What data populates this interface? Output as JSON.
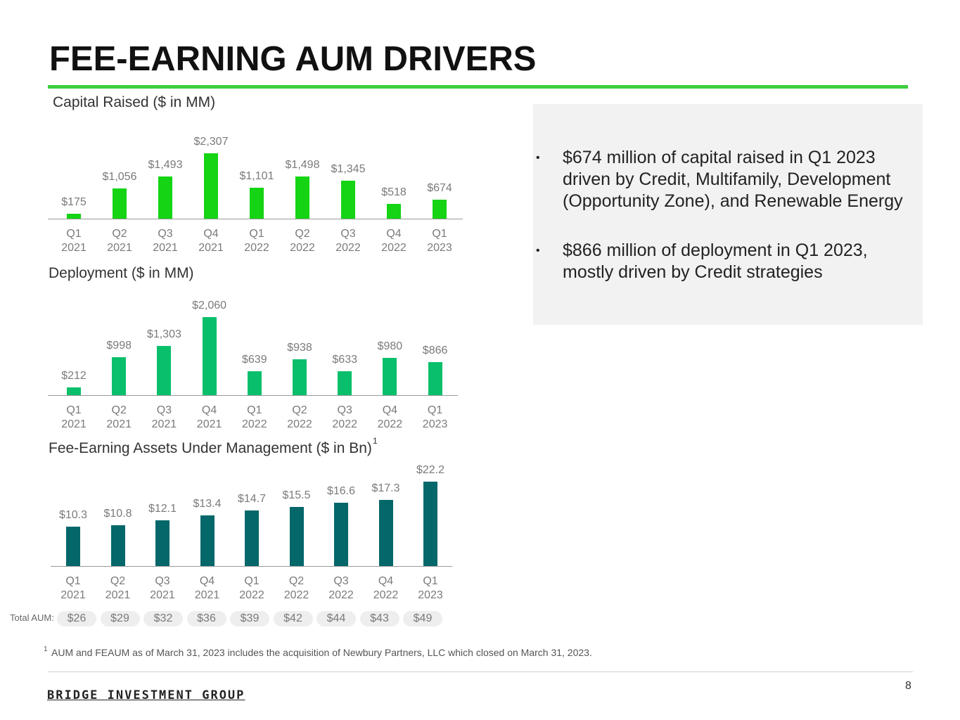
{
  "header": {
    "title": "FEE-EARNING AUM DRIVERS"
  },
  "chart_data": [
    {
      "type": "bar",
      "title": "Capital Raised ($ in MM)",
      "color": "#14d414",
      "categories": [
        "Q1 2021",
        "Q2 2021",
        "Q3 2021",
        "Q4 2021",
        "Q1 2022",
        "Q2 2022",
        "Q3 2022",
        "Q4 2022",
        "Q1 2023"
      ],
      "values": [
        175,
        1056,
        1493,
        2307,
        1101,
        1498,
        1345,
        518,
        674
      ],
      "value_labels": [
        "$175",
        "$1,056",
        "$1,493",
        "$2,307",
        "$1,101",
        "$1,498",
        "$1,345",
        "$518",
        "$674"
      ]
    },
    {
      "type": "bar",
      "title": "Deployment ($ in MM)",
      "color": "#0abf6b",
      "categories": [
        "Q1 2021",
        "Q2 2021",
        "Q3 2021",
        "Q4 2021",
        "Q1 2022",
        "Q2 2022",
        "Q3 2022",
        "Q4 2022",
        "Q1 2023"
      ],
      "values": [
        212,
        998,
        1303,
        2060,
        639,
        938,
        633,
        980,
        866
      ],
      "value_labels": [
        "$212",
        "$998",
        "$1,303",
        "$2,060",
        "$639",
        "$938",
        "$633",
        "$980",
        "$866"
      ]
    },
    {
      "type": "bar",
      "title": "Fee-Earning Assets Under Management ($ in Bn)",
      "title_note": "1",
      "color": "#04676a",
      "categories": [
        "Q1 2021",
        "Q2 2021",
        "Q3 2021",
        "Q4 2021",
        "Q1 2022",
        "Q2 2022",
        "Q3 2022",
        "Q4 2022",
        "Q1 2023"
      ],
      "values": [
        10.3,
        10.8,
        12.1,
        13.4,
        14.7,
        15.5,
        16.6,
        17.3,
        22.2
      ],
      "value_labels": [
        "$10.3",
        "$10.8",
        "$12.1",
        "$13.4",
        "$14.7",
        "$15.5",
        "$16.6",
        "$17.3",
        "$22.2"
      ],
      "total_aum": {
        "label": "Total AUM:",
        "values": [
          26,
          29,
          32,
          36,
          39,
          42,
          44,
          43,
          49
        ],
        "value_labels": [
          "$26",
          "$29",
          "$32",
          "$36",
          "$39",
          "$42",
          "$44",
          "$43",
          "$49"
        ]
      }
    }
  ],
  "bullets": [
    "$674 million of capital raised in Q1 2023 driven by Credit, Multifamily, Development (Opportunity Zone), and Renewable Energy",
    "$866 million of deployment in Q1 2023, mostly driven by Credit strategies"
  ],
  "footnote": {
    "marker": "1",
    "text": "AUM and FEAUM as of March 31, 2023 includes the acquisition of Newbury Partners, LLC which closed on March 31, 2023."
  },
  "footer": {
    "logo": "BRIDGE INVESTMENT GROUP",
    "page": "8"
  }
}
